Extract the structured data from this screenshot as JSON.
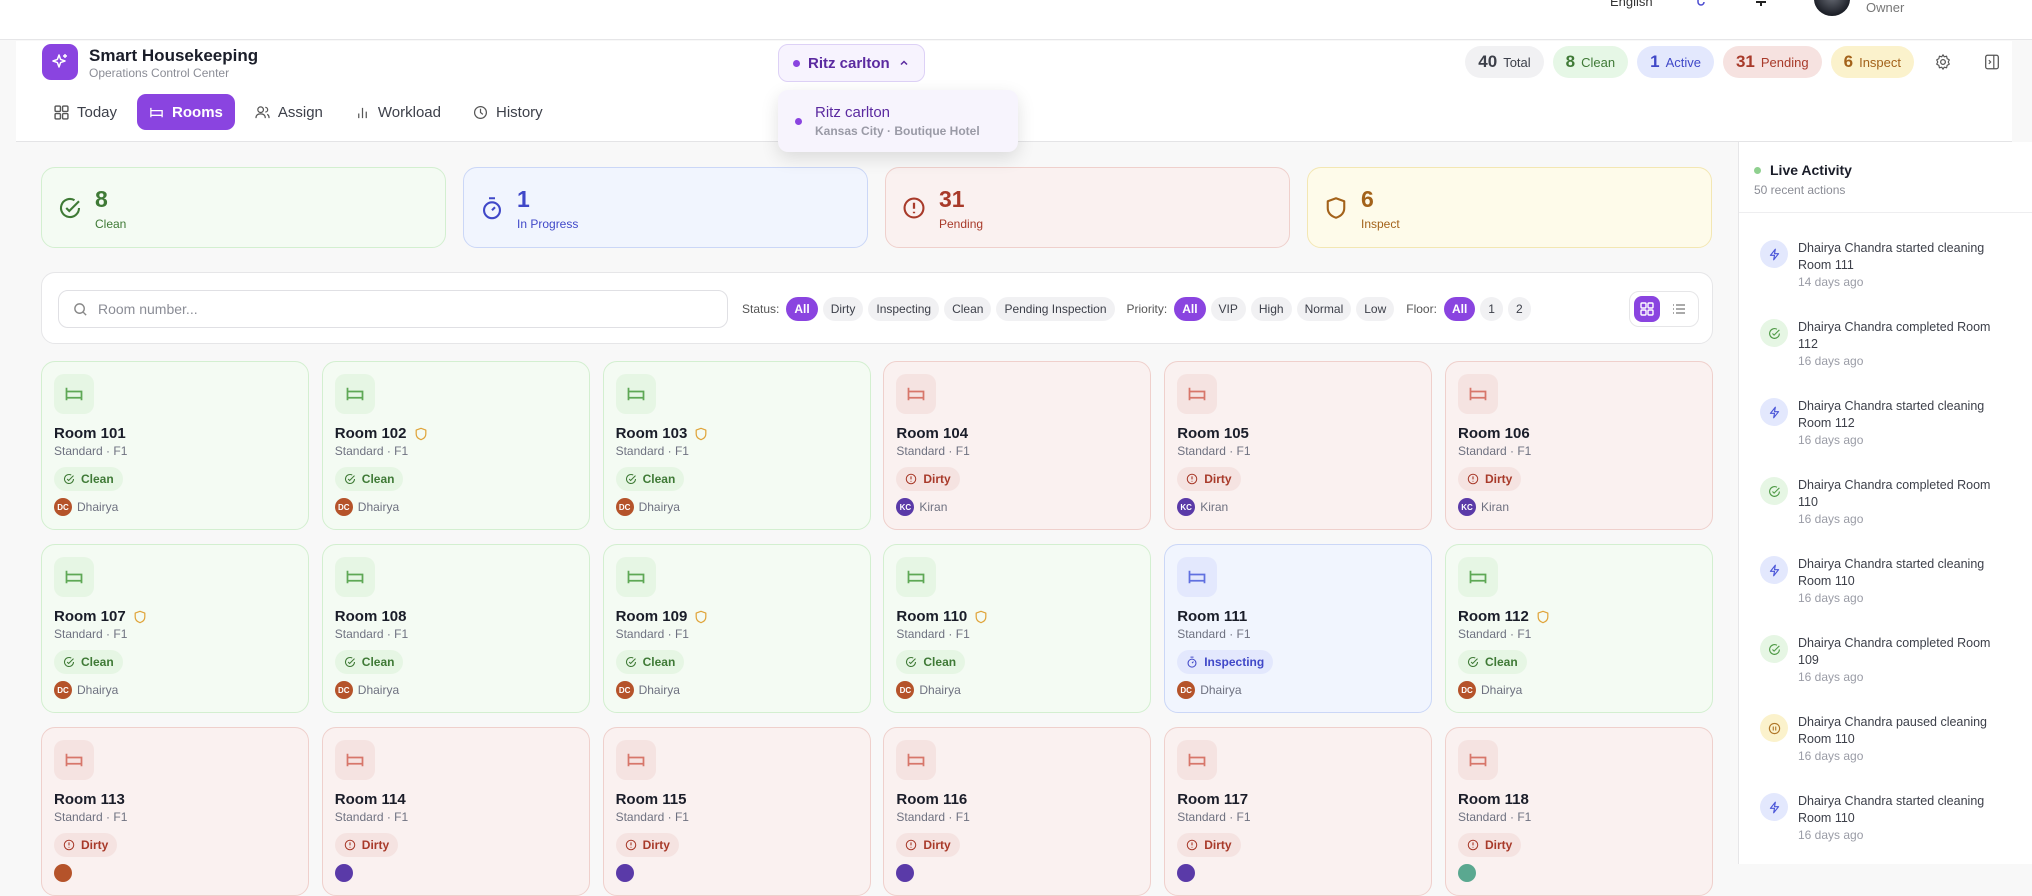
{
  "topbar": {
    "language": "English",
    "role": "Owner"
  },
  "app": {
    "title": "Smart Housekeeping",
    "subtitle": "Operations Control Center"
  },
  "nav": [
    {
      "label": "Today",
      "icon": "grid-icon"
    },
    {
      "label": "Rooms",
      "icon": "bed-icon",
      "active": true
    },
    {
      "label": "Assign",
      "icon": "users-icon"
    },
    {
      "label": "Workload",
      "icon": "bar-chart-icon"
    },
    {
      "label": "History",
      "icon": "clock-icon"
    }
  ],
  "hotel": {
    "selected": "Ritz carlton",
    "dropdown": {
      "name": "Ritz carlton",
      "location": "Kansas City · Boutique Hotel"
    }
  },
  "summary": [
    {
      "value": "40",
      "label": "Total",
      "bg": "#f1f1f3",
      "color": "#3d404a"
    },
    {
      "value": "8",
      "label": "Clean",
      "bg": "#e6f7e6",
      "color": "#3f7a36"
    },
    {
      "value": "1",
      "label": "Active",
      "bg": "#e3e8fd",
      "color": "#4048c8"
    },
    {
      "value": "31",
      "label": "Pending",
      "bg": "#f6e2e0",
      "color": "#a83a2a"
    },
    {
      "value": "6",
      "label": "Inspect",
      "bg": "#fbf2cc",
      "color": "#a3621a"
    }
  ],
  "stats": [
    {
      "value": "8",
      "label": "Clean",
      "kind": "clean"
    },
    {
      "value": "1",
      "label": "In Progress",
      "kind": "active"
    },
    {
      "value": "31",
      "label": "Pending",
      "kind": "dirty"
    },
    {
      "value": "6",
      "label": "Inspect",
      "kind": "inspect"
    }
  ],
  "colors": {
    "accent": "#8a44e0",
    "clean": {
      "bg": "#f4fbf3",
      "border": "#d3efd0",
      "text": "#3f7a36",
      "soft": "#e6f6e4"
    },
    "active": {
      "bg": "#f1f5fe",
      "border": "#cbd7f7",
      "text": "#4048c8",
      "soft": "#e3e8fd"
    },
    "dirty": {
      "bg": "#faf1f0",
      "border": "#efd0cc",
      "text": "#a83a2a",
      "soft": "#f5e3e1"
    },
    "inspect": {
      "bg": "#fefbea",
      "border": "#f3e7b3",
      "text": "#a3621a",
      "soft": "#fbf2cc"
    }
  },
  "filters": {
    "search_placeholder": "Room number...",
    "status": {
      "label": "Status:",
      "options": [
        "All",
        "Dirty",
        "Inspecting",
        "Clean",
        "Pending Inspection"
      ],
      "selected": "All"
    },
    "priority": {
      "label": "Priority:",
      "options": [
        "All",
        "VIP",
        "High",
        "Normal",
        "Low"
      ],
      "selected": "All"
    },
    "floor": {
      "label": "Floor:",
      "options": [
        "All",
        "1",
        "2"
      ],
      "selected": "All"
    },
    "view": "grid"
  },
  "rooms": [
    {
      "name": "Room 101",
      "meta": "Standard · F1",
      "status": "Clean",
      "kind": "clean",
      "vip": false,
      "initials": "DC",
      "assignee": "Dhairya",
      "avatar": "#b5532a"
    },
    {
      "name": "Room 102",
      "meta": "Standard · F1",
      "status": "Clean",
      "kind": "clean",
      "vip": true,
      "initials": "DC",
      "assignee": "Dhairya",
      "avatar": "#b5532a"
    },
    {
      "name": "Room 103",
      "meta": "Standard · F1",
      "status": "Clean",
      "kind": "clean",
      "vip": true,
      "initials": "DC",
      "assignee": "Dhairya",
      "avatar": "#b5532a"
    },
    {
      "name": "Room 104",
      "meta": "Standard · F1",
      "status": "Dirty",
      "kind": "dirty",
      "vip": false,
      "initials": "KC",
      "assignee": "Kiran",
      "avatar": "#5a3aa8"
    },
    {
      "name": "Room 105",
      "meta": "Standard · F1",
      "status": "Dirty",
      "kind": "dirty",
      "vip": false,
      "initials": "KC",
      "assignee": "Kiran",
      "avatar": "#5a3aa8"
    },
    {
      "name": "Room 106",
      "meta": "Standard · F1",
      "status": "Dirty",
      "kind": "dirty",
      "vip": false,
      "initials": "KC",
      "assignee": "Kiran",
      "avatar": "#5a3aa8"
    },
    {
      "name": "Room 107",
      "meta": "Standard · F1",
      "status": "Clean",
      "kind": "clean",
      "vip": true,
      "initials": "DC",
      "assignee": "Dhairya",
      "avatar": "#b5532a"
    },
    {
      "name": "Room 108",
      "meta": "Standard · F1",
      "status": "Clean",
      "kind": "clean",
      "vip": false,
      "initials": "DC",
      "assignee": "Dhairya",
      "avatar": "#b5532a"
    },
    {
      "name": "Room 109",
      "meta": "Standard · F1",
      "status": "Clean",
      "kind": "clean",
      "vip": true,
      "initials": "DC",
      "assignee": "Dhairya",
      "avatar": "#b5532a"
    },
    {
      "name": "Room 110",
      "meta": "Standard · F1",
      "status": "Clean",
      "kind": "clean",
      "vip": true,
      "initials": "DC",
      "assignee": "Dhairya",
      "avatar": "#b5532a"
    },
    {
      "name": "Room 111",
      "meta": "Standard · F1",
      "status": "Inspecting",
      "kind": "active",
      "vip": false,
      "initials": "DC",
      "assignee": "Dhairya",
      "avatar": "#b5532a"
    },
    {
      "name": "Room 112",
      "meta": "Standard · F1",
      "status": "Clean",
      "kind": "clean",
      "vip": true,
      "initials": "DC",
      "assignee": "Dhairya",
      "avatar": "#b5532a"
    },
    {
      "name": "Room 113",
      "meta": "Standard · F1",
      "status": "Dirty",
      "kind": "dirty",
      "vip": false,
      "avatar": "#b5532a"
    },
    {
      "name": "Room 114",
      "meta": "Standard · F1",
      "status": "Dirty",
      "kind": "dirty",
      "vip": false,
      "avatar": "#5a3aa8"
    },
    {
      "name": "Room 115",
      "meta": "Standard · F1",
      "status": "Dirty",
      "kind": "dirty",
      "vip": false,
      "avatar": "#5a3aa8"
    },
    {
      "name": "Room 116",
      "meta": "Standard · F1",
      "status": "Dirty",
      "kind": "dirty",
      "vip": false,
      "avatar": "#5a3aa8"
    },
    {
      "name": "Room 117",
      "meta": "Standard · F1",
      "status": "Dirty",
      "kind": "dirty",
      "vip": false,
      "avatar": "#5a3aa8"
    },
    {
      "name": "Room 118",
      "meta": "Standard · F1",
      "status": "Dirty",
      "kind": "dirty",
      "vip": false,
      "avatar": "#5aa890"
    }
  ],
  "activity": {
    "title": "Live Activity",
    "count": "50 recent actions",
    "items": [
      {
        "text": "Dhairya Chandra started cleaning Room 111",
        "time": "14 days ago",
        "type": "start"
      },
      {
        "text": "Dhairya Chandra completed Room 112",
        "time": "16 days ago",
        "type": "complete"
      },
      {
        "text": "Dhairya Chandra started cleaning Room 112",
        "time": "16 days ago",
        "type": "start"
      },
      {
        "text": "Dhairya Chandra completed Room 110",
        "time": "16 days ago",
        "type": "complete"
      },
      {
        "text": "Dhairya Chandra started cleaning Room 110",
        "time": "16 days ago",
        "type": "start"
      },
      {
        "text": "Dhairya Chandra completed Room 109",
        "time": "16 days ago",
        "type": "complete"
      },
      {
        "text": "Dhairya Chandra paused cleaning Room 110",
        "time": "16 days ago",
        "type": "pause"
      },
      {
        "text": "Dhairya Chandra started cleaning Room 110",
        "time": "16 days ago",
        "type": "start"
      }
    ]
  }
}
